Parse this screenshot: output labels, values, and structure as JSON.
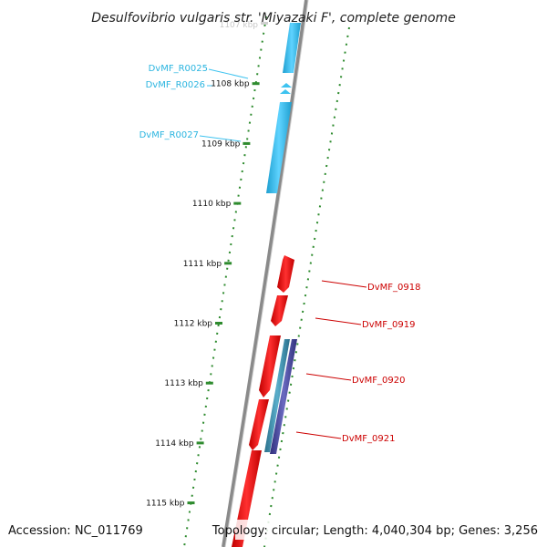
{
  "title": "Desulfovibrio vulgaris str. 'Miyazaki F', complete genome",
  "footer": {
    "accession": "Accession: NC_011769",
    "topology": "Topology: circular; Length: 4,040,304 bp; Genes: 3,256"
  },
  "axis": {
    "top_kbp": 1107,
    "top_label": "1107 kbp",
    "ticks": [
      {
        "kbp": 1108,
        "label": "1108 kbp"
      },
      {
        "kbp": 1109,
        "label": "1109 kbp"
      },
      {
        "kbp": 1110,
        "label": "1110 kbp"
      },
      {
        "kbp": 1111,
        "label": "1111 kbp"
      },
      {
        "kbp": 1112,
        "label": "1112 kbp"
      },
      {
        "kbp": 1113,
        "label": "1113 kbp"
      },
      {
        "kbp": 1114,
        "label": "1114 kbp"
      },
      {
        "kbp": 1115,
        "label": "1115 kbp"
      }
    ]
  },
  "genes": [
    {
      "label": "DvMF_R0025",
      "strand": "reverse",
      "color": "#3ec3f0"
    },
    {
      "label": "DvMF_R0026",
      "strand": "reverse",
      "color": "#3ec3f0"
    },
    {
      "label": "DvMF_R0027",
      "strand": "reverse",
      "color": "#3ec3f0"
    },
    {
      "label": "DvMF_0918",
      "strand": "forward",
      "color": "#ff0000"
    },
    {
      "label": "DvMF_0919",
      "strand": "forward",
      "color": "#ff0000"
    },
    {
      "label": "DvMF_0920",
      "strand": "forward",
      "color": "#ff0000"
    },
    {
      "label": "DvMF_0921",
      "strand": "forward",
      "color": "#ff0000"
    }
  ],
  "colors": {
    "backbone": "#8a8a8a",
    "gc_track": "#2e8b2e",
    "rna_gene": "#3ec3f0",
    "cds_gene": "#ff0000",
    "cds_alt": "#4a4a9a",
    "cds_teal": "#3a8aa8"
  }
}
